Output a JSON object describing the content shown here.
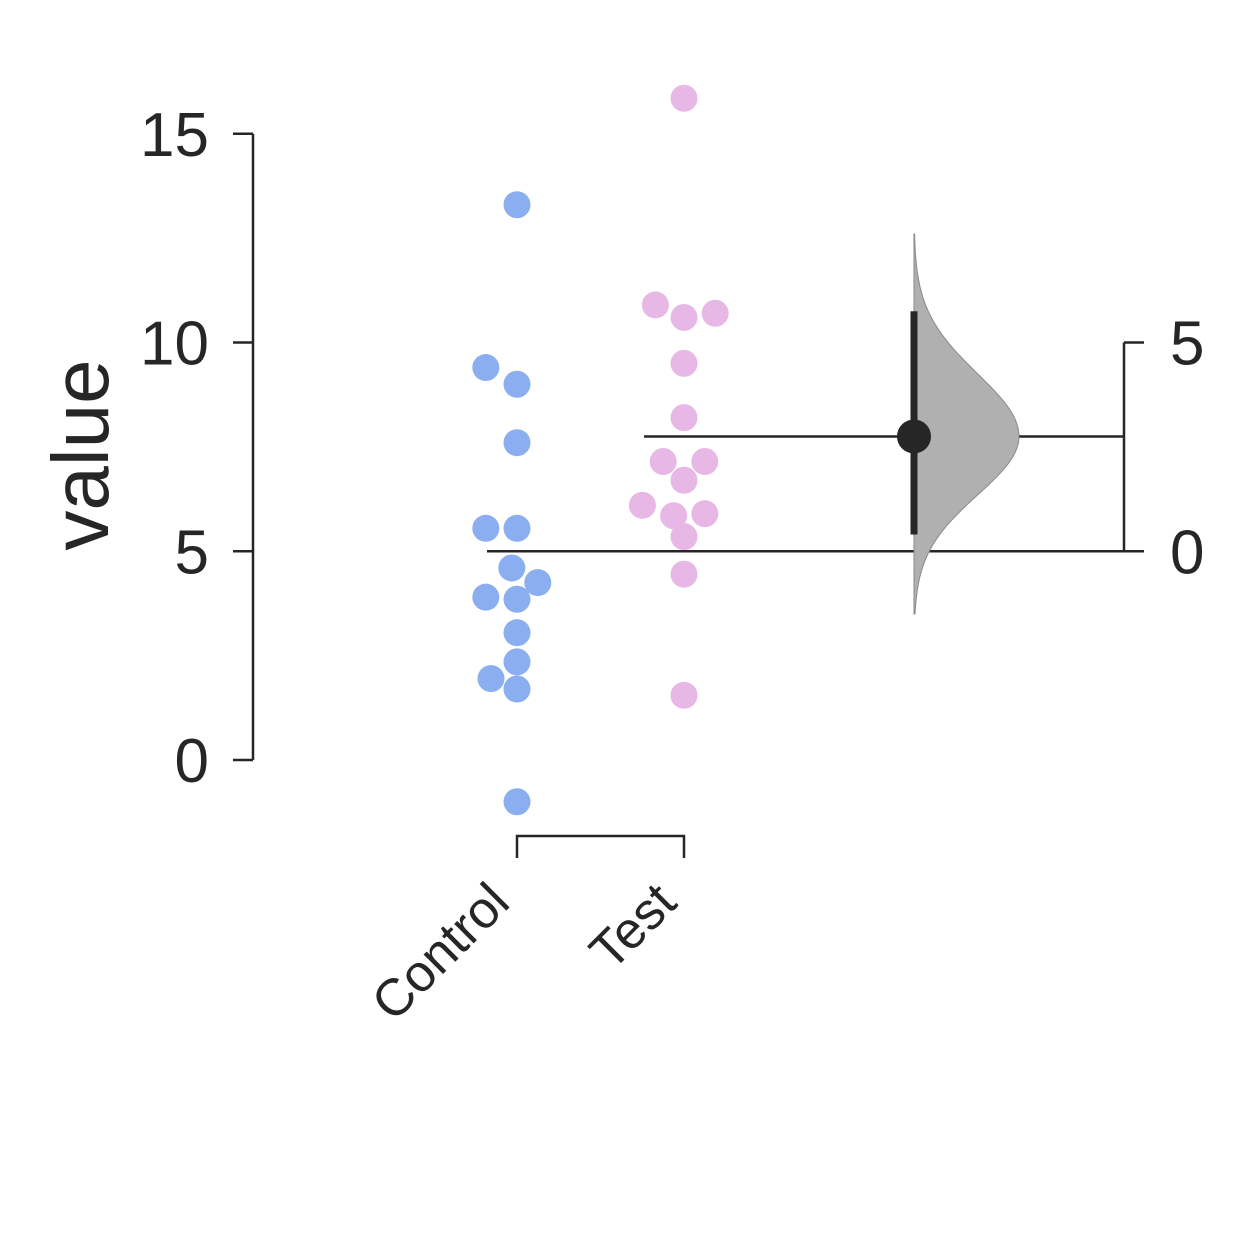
{
  "chart_data": {
    "type": "scatter",
    "subtype": "gardner-altman estimation plot",
    "ylabel": "value",
    "categories": [
      "Control",
      "Test"
    ],
    "y_ticks": [
      0,
      5,
      10,
      15
    ],
    "ylim": [
      -1.2,
      16.0
    ],
    "delta_ticks": [
      0,
      5
    ],
    "grid": false,
    "legend": "none",
    "series": [
      {
        "category": "Control",
        "color": "#8aaef0",
        "points": [
          {
            "y": 13.3,
            "dx": 0
          },
          {
            "y": 9.4,
            "dx": -0.6
          },
          {
            "y": 9.0,
            "dx": 0
          },
          {
            "y": 7.6,
            "dx": 0
          },
          {
            "y": 5.55,
            "dx": -0.6
          },
          {
            "y": 5.55,
            "dx": 0
          },
          {
            "y": 4.6,
            "dx": -0.1
          },
          {
            "y": 4.25,
            "dx": 0.4
          },
          {
            "y": 3.9,
            "dx": -0.6
          },
          {
            "y": 3.85,
            "dx": 0
          },
          {
            "y": 3.05,
            "dx": 0
          },
          {
            "y": 2.35,
            "dx": 0
          },
          {
            "y": 1.95,
            "dx": -0.5
          },
          {
            "y": 1.7,
            "dx": 0
          },
          {
            "y": -1.0,
            "dx": 0
          }
        ]
      },
      {
        "category": "Test",
        "color": "#e7b8e6",
        "points": [
          {
            "y": 15.85,
            "dx": 0
          },
          {
            "y": 10.9,
            "dx": -0.55
          },
          {
            "y": 10.7,
            "dx": 0.6
          },
          {
            "y": 10.6,
            "dx": 0
          },
          {
            "y": 9.5,
            "dx": 0
          },
          {
            "y": 8.2,
            "dx": 0
          },
          {
            "y": 7.15,
            "dx": -0.4
          },
          {
            "y": 7.15,
            "dx": 0.4
          },
          {
            "y": 6.7,
            "dx": 0
          },
          {
            "y": 6.1,
            "dx": -0.8
          },
          {
            "y": 5.9,
            "dx": 0.4
          },
          {
            "y": 5.85,
            "dx": -0.2
          },
          {
            "y": 5.35,
            "dx": 0
          },
          {
            "y": 4.45,
            "dx": 0
          },
          {
            "y": 1.55,
            "dx": 0
          }
        ]
      }
    ],
    "control_mean": 5.0,
    "test_mean": 7.75,
    "mean_difference": 2.75,
    "ci": [
      0.4,
      5.75
    ],
    "bootstrap_range": [
      -1.5,
      7.6
    ],
    "colors": {
      "control": "#8aaef0",
      "test": "#e7b8e6",
      "effect": "#262626",
      "distribution": "#b0b0b0"
    }
  }
}
